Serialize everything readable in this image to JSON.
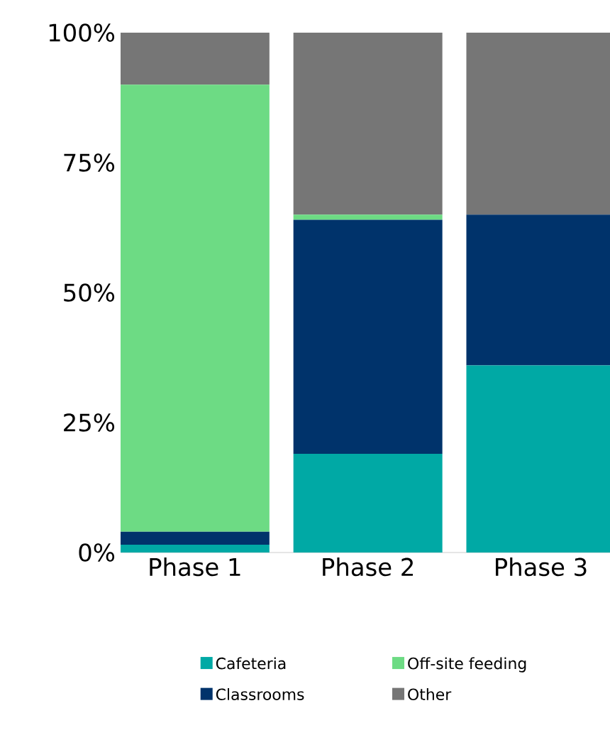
{
  "chart_data": {
    "type": "bar",
    "stacked": true,
    "categories": [
      "Phase 1",
      "Phase 2",
      "Phase 3"
    ],
    "series": [
      {
        "name": "Cafeteria",
        "color": "#00a9a5",
        "values": [
          1.5,
          19,
          36
        ]
      },
      {
        "name": "Classrooms",
        "color": "#00336b",
        "values": [
          2.5,
          45,
          29
        ]
      },
      {
        "name": "Off-site feeding",
        "color": "#6ddb84",
        "values": [
          86,
          1,
          0
        ]
      },
      {
        "name": "Other",
        "color": "#767676",
        "values": [
          10,
          35,
          35
        ]
      }
    ],
    "ylim": [
      0,
      100
    ],
    "yticks": [
      {
        "value": 0,
        "label": "0%"
      },
      {
        "value": 25,
        "label": "25%"
      },
      {
        "value": 50,
        "label": "50%"
      },
      {
        "value": 75,
        "label": "75%"
      },
      {
        "value": 100,
        "label": "100%"
      }
    ],
    "legend": "bottom"
  }
}
